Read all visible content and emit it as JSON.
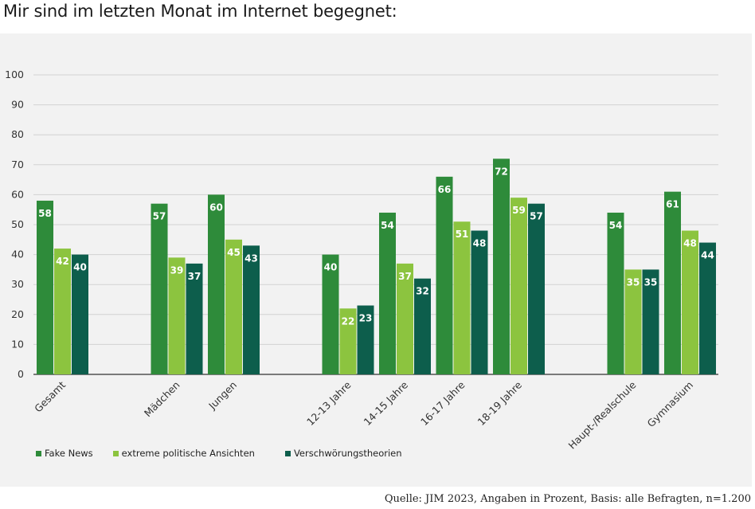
{
  "heading": "Mir sind im letzten Monat im Internet begegnet:",
  "source": "Quelle: JIM 2023, Angaben in Prozent, Basis: alle Befragten, n=1.200",
  "chart_data": {
    "type": "bar",
    "categories": [
      "Gesamt",
      "Mädchen",
      "Jungen",
      "12-13 Jahre",
      "14-15 Jahre",
      "16-17 Jahre",
      "18-19 Jahre",
      "Haupt-/Realschule",
      "Gymnasium"
    ],
    "groups": [
      [
        0
      ],
      [
        1,
        2
      ],
      [
        3,
        4,
        5,
        6
      ],
      [
        7,
        8
      ]
    ],
    "series": [
      {
        "name": "Fake News",
        "color": "#2e8b3a",
        "values": [
          58,
          57,
          60,
          40,
          54,
          66,
          72,
          54,
          61
        ]
      },
      {
        "name": "extreme politische Ansichten",
        "color": "#8cc43f",
        "values": [
          42,
          39,
          45,
          22,
          37,
          51,
          59,
          35,
          48
        ]
      },
      {
        "name": "Verschwörungstheorien",
        "color": "#0d5e4c",
        "values": [
          40,
          37,
          43,
          23,
          32,
          48,
          57,
          35,
          44
        ]
      }
    ],
    "ylim": [
      0,
      100
    ],
    "yticks": [
      0,
      10,
      20,
      30,
      40,
      50,
      60,
      70,
      80,
      90,
      100
    ],
    "grid": true,
    "legend_position": "bottom-left"
  }
}
